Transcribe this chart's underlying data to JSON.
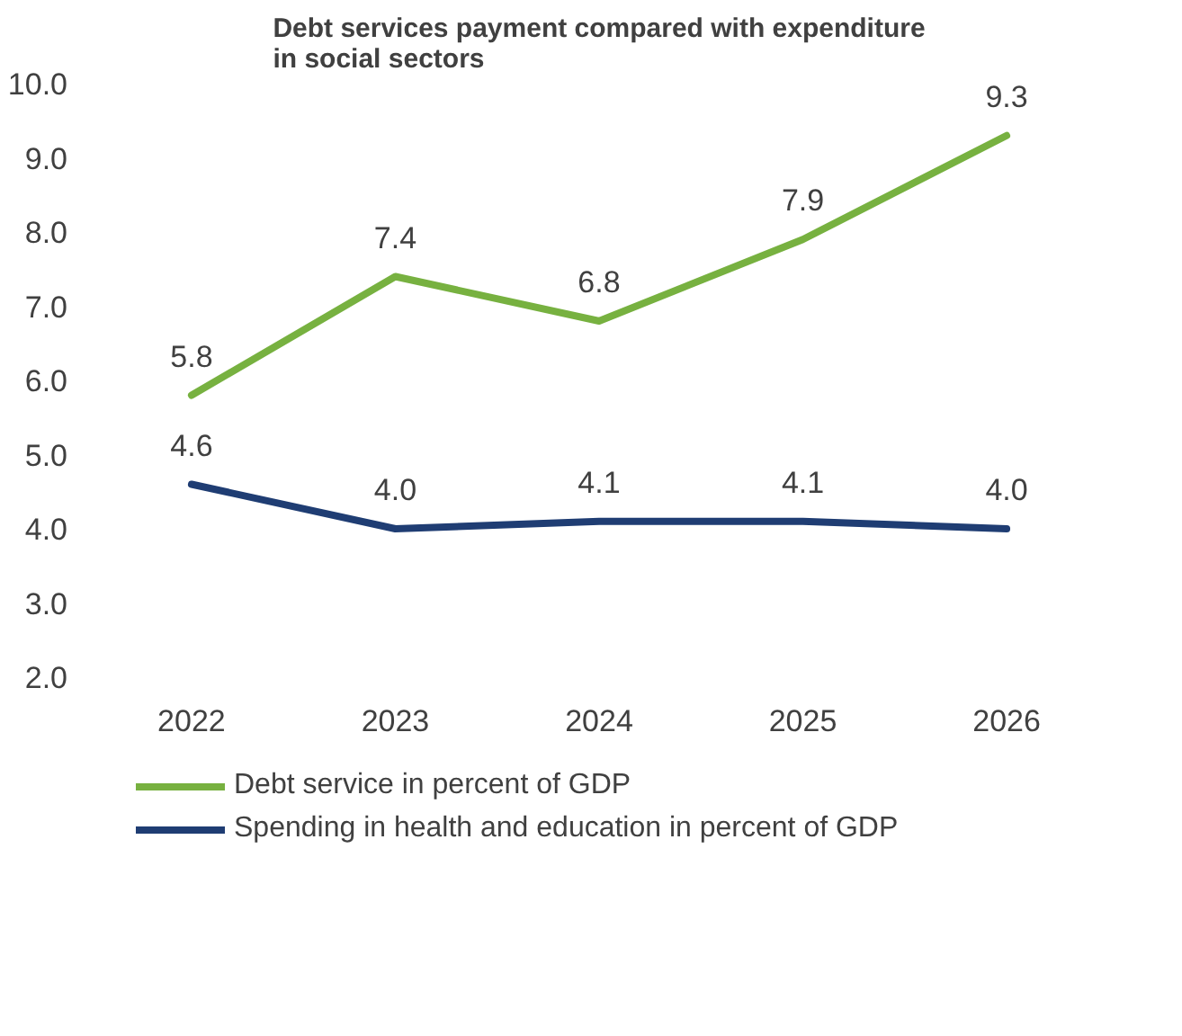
{
  "chart_data": {
    "type": "line",
    "title": "Debt services payment compared with expenditure\nin social sectors",
    "categories": [
      "2022",
      "2023",
      "2024",
      "2025",
      "2026"
    ],
    "series": [
      {
        "name": "Debt service in percent of GDP",
        "color": "#77b140",
        "values": [
          5.8,
          7.4,
          6.8,
          7.9,
          9.3
        ],
        "value_labels": [
          "5.8",
          "7.4",
          "6.8",
          "7.9",
          "9.3"
        ]
      },
      {
        "name": "Spending in health and education in percent of GDP",
        "color": "#1f3d73",
        "values": [
          4.6,
          4.0,
          4.1,
          4.1,
          4.0
        ],
        "value_labels": [
          "4.6",
          "4.0",
          "4.1",
          "4.1",
          "4.0"
        ]
      }
    ],
    "ylim": [
      2,
      10
    ],
    "yticks": [
      {
        "value": 2,
        "label": "2.0"
      },
      {
        "value": 3,
        "label": "3.0"
      },
      {
        "value": 4,
        "label": "4.0"
      },
      {
        "value": 5,
        "label": "5.0"
      },
      {
        "value": 6,
        "label": "6.0"
      },
      {
        "value": 7,
        "label": "7.0"
      },
      {
        "value": 8,
        "label": "8.0"
      },
      {
        "value": 9,
        "label": "9.0"
      },
      {
        "value": 10,
        "label": "10.0"
      }
    ],
    "grid": false,
    "legend": "bottom",
    "marker": "none",
    "line_style": "solid"
  }
}
